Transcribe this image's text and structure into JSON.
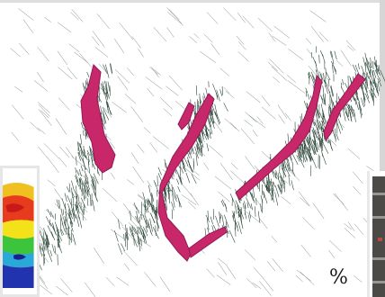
{
  "figure": {
    "percent_text": "%",
    "colors": {
      "background": "#ffffff",
      "body_fill": "#c8276a",
      "body_shadow": "#8e1c55",
      "needle_dense": "#2f4a3c",
      "needle_light": "#7a8a82"
    }
  }
}
